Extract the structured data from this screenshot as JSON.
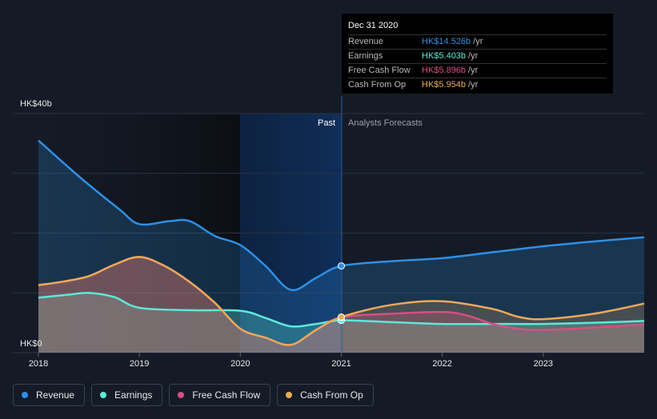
{
  "chart_data": {
    "type": "area",
    "x_ticks": [
      "2018",
      "2019",
      "2020",
      "2021",
      "2022",
      "2023"
    ],
    "y_labels": {
      "top": "HK$40b",
      "bottom": "HK$0"
    },
    "ylim": [
      0,
      40
    ],
    "region_labels": {
      "past": "Past",
      "forecast": "Analysts Forecasts"
    },
    "divider_x": 2021.0,
    "grid": true,
    "series": [
      {
        "name": "Revenue",
        "color": "#2e90e5",
        "points": [
          [
            2018.0,
            35.5
          ],
          [
            2018.4,
            29.5
          ],
          [
            2018.8,
            24.0
          ],
          [
            2019.0,
            21.5
          ],
          [
            2019.3,
            22.0
          ],
          [
            2019.5,
            22.0
          ],
          [
            2019.75,
            19.5
          ],
          [
            2020.0,
            18.0
          ],
          [
            2020.25,
            14.5
          ],
          [
            2020.5,
            10.5
          ],
          [
            2020.75,
            12.5
          ],
          [
            2021.0,
            14.5
          ],
          [
            2021.5,
            15.3
          ],
          [
            2022.0,
            15.8
          ],
          [
            2022.5,
            16.8
          ],
          [
            2023.0,
            17.8
          ],
          [
            2023.5,
            18.6
          ],
          [
            2024.0,
            19.3
          ]
        ]
      },
      {
        "name": "Earnings",
        "color": "#5ee8d8",
        "points": [
          [
            2018.0,
            9.2
          ],
          [
            2018.3,
            9.7
          ],
          [
            2018.5,
            10.0
          ],
          [
            2018.75,
            9.3
          ],
          [
            2019.0,
            7.5
          ],
          [
            2019.5,
            7.1
          ],
          [
            2020.0,
            7.0
          ],
          [
            2020.25,
            5.8
          ],
          [
            2020.5,
            4.4
          ],
          [
            2020.75,
            4.8
          ],
          [
            2021.0,
            5.4
          ],
          [
            2021.5,
            5.1
          ],
          [
            2022.0,
            4.8
          ],
          [
            2022.5,
            4.8
          ],
          [
            2023.0,
            4.8
          ],
          [
            2023.5,
            5.0
          ],
          [
            2024.0,
            5.3
          ]
        ]
      },
      {
        "name": "Free Cash Flow",
        "color": "#d44f85",
        "points": [
          [
            2018.0,
            11.3
          ],
          [
            2018.25,
            11.9
          ],
          [
            2018.5,
            12.8
          ],
          [
            2018.75,
            14.7
          ],
          [
            2019.0,
            16.0
          ],
          [
            2019.25,
            14.5
          ],
          [
            2019.5,
            11.8
          ],
          [
            2019.75,
            8.3
          ],
          [
            2020.0,
            4.0
          ],
          [
            2020.25,
            2.5
          ],
          [
            2020.5,
            1.3
          ],
          [
            2020.75,
            3.8
          ],
          [
            2021.0,
            5.9
          ],
          [
            2021.5,
            6.5
          ],
          [
            2022.0,
            6.8
          ],
          [
            2022.25,
            6.2
          ],
          [
            2022.5,
            4.8
          ],
          [
            2022.75,
            4.0
          ],
          [
            2023.0,
            3.8
          ],
          [
            2023.5,
            4.2
          ],
          [
            2024.0,
            4.7
          ]
        ]
      },
      {
        "name": "Cash From Op",
        "color": "#eaa95a",
        "points": [
          [
            2018.0,
            11.3
          ],
          [
            2018.25,
            11.9
          ],
          [
            2018.5,
            12.8
          ],
          [
            2018.75,
            14.7
          ],
          [
            2019.0,
            16.0
          ],
          [
            2019.25,
            14.5
          ],
          [
            2019.5,
            11.8
          ],
          [
            2019.75,
            8.3
          ],
          [
            2020.0,
            4.0
          ],
          [
            2020.25,
            2.5
          ],
          [
            2020.5,
            1.3
          ],
          [
            2020.75,
            3.8
          ],
          [
            2021.0,
            5.95
          ],
          [
            2021.5,
            8.0
          ],
          [
            2022.0,
            8.6
          ],
          [
            2022.5,
            7.3
          ],
          [
            2022.75,
            6.0
          ],
          [
            2023.0,
            5.6
          ],
          [
            2023.5,
            6.5
          ],
          [
            2024.0,
            8.2
          ]
        ]
      }
    ],
    "tooltip": {
      "date": "Dec 31 2020",
      "rows": [
        {
          "label": "Revenue",
          "value": "HK$14.526b",
          "unit": "/yr",
          "color": "#2e90e5"
        },
        {
          "label": "Earnings",
          "value": "HK$5.403b",
          "unit": "/yr",
          "color": "#5ee8d8"
        },
        {
          "label": "Free Cash Flow",
          "value": "HK$5.896b",
          "unit": "/yr",
          "color": "#d44f85"
        },
        {
          "label": "Cash From Op",
          "value": "HK$5.954b",
          "unit": "/yr",
          "color": "#eaa95a"
        }
      ]
    }
  },
  "legend": [
    {
      "label": "Revenue",
      "color": "#2e90e5"
    },
    {
      "label": "Earnings",
      "color": "#5ee8d8"
    },
    {
      "label": "Free Cash Flow",
      "color": "#d44f85"
    },
    {
      "label": "Cash From Op",
      "color": "#eaa95a"
    }
  ]
}
